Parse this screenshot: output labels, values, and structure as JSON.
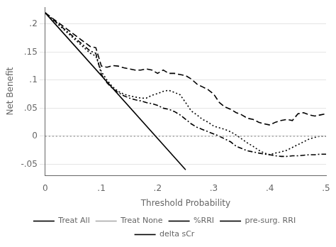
{
  "chart_data": {
    "type": "line",
    "xlabel": "Threshold Probability",
    "ylabel": "Net Benefit",
    "xlim": [
      0,
      0.5
    ],
    "ylim": [
      -0.07,
      0.23
    ],
    "xticks": [
      0,
      {
        "value": 0.1,
        "label": ".1"
      },
      {
        "value": 0.2,
        "label": ".2"
      },
      {
        "value": 0.3,
        "label": ".3"
      },
      {
        "value": 0.4,
        "label": ".4"
      },
      {
        "value": 0.5,
        "label": ".5"
      }
    ],
    "yticks": [
      {
        "value": -0.05,
        "label": "-.05"
      },
      0,
      {
        "value": 0.05,
        "label": ".05"
      },
      {
        "value": 0.1,
        "label": ".1"
      },
      {
        "value": 0.15,
        "label": ".15"
      },
      {
        "value": 0.2,
        "label": ".2"
      }
    ],
    "grid": "y",
    "legend": "bottom",
    "series": [
      {
        "name": "Treat All",
        "color": "#000000",
        "line_style": "solid",
        "x": [
          0.0,
          0.25
        ],
        "values": [
          0.22,
          -0.06
        ]
      },
      {
        "name": "Treat None",
        "color": "#aaaaaa",
        "line_style": "dotted",
        "x": [
          0.0,
          0.5
        ],
        "values": [
          0.0,
          0.0
        ]
      },
      {
        "name": "%RRI",
        "color": "#000000",
        "line_style": "dashed",
        "x": [
          0.0,
          0.08,
          0.09,
          0.1,
          0.11,
          0.12,
          0.13,
          0.14,
          0.15,
          0.16,
          0.17,
          0.18,
          0.19,
          0.2,
          0.21,
          0.22,
          0.23,
          0.24,
          0.25,
          0.26,
          0.27,
          0.28,
          0.29,
          0.3,
          0.31,
          0.32,
          0.33,
          0.34,
          0.35,
          0.36,
          0.37,
          0.38,
          0.39,
          0.4,
          0.41,
          0.42,
          0.43,
          0.44,
          0.45,
          0.46,
          0.47,
          0.48,
          0.49,
          0.5
        ],
        "values": [
          0.22,
          0.16,
          0.158,
          0.125,
          0.123,
          0.126,
          0.125,
          0.122,
          0.12,
          0.118,
          0.118,
          0.12,
          0.118,
          0.112,
          0.118,
          0.112,
          0.112,
          0.11,
          0.108,
          0.102,
          0.093,
          0.088,
          0.083,
          0.075,
          0.06,
          0.052,
          0.048,
          0.042,
          0.038,
          0.032,
          0.03,
          0.025,
          0.022,
          0.02,
          0.025,
          0.028,
          0.03,
          0.028,
          0.04,
          0.042,
          0.038,
          0.036,
          0.038,
          0.04
        ]
      },
      {
        "name": "pre-surg. RRI",
        "color": "#000000",
        "line_style": "dotted",
        "x": [
          0.0,
          0.08,
          0.09,
          0.1,
          0.11,
          0.12,
          0.13,
          0.14,
          0.15,
          0.16,
          0.17,
          0.18,
          0.19,
          0.2,
          0.21,
          0.22,
          0.23,
          0.24,
          0.25,
          0.26,
          0.27,
          0.28,
          0.29,
          0.3,
          0.31,
          0.32,
          0.33,
          0.34,
          0.35,
          0.36,
          0.37,
          0.38,
          0.39,
          0.4,
          0.41,
          0.42,
          0.43,
          0.44,
          0.45,
          0.46,
          0.47,
          0.48,
          0.49,
          0.5
        ],
        "values": [
          0.22,
          0.148,
          0.143,
          0.115,
          0.1,
          0.088,
          0.08,
          0.075,
          0.072,
          0.07,
          0.068,
          0.068,
          0.073,
          0.076,
          0.08,
          0.082,
          0.078,
          0.074,
          0.06,
          0.045,
          0.038,
          0.03,
          0.025,
          0.018,
          0.015,
          0.012,
          0.008,
          0.002,
          -0.005,
          -0.012,
          -0.018,
          -0.025,
          -0.03,
          -0.033,
          -0.03,
          -0.028,
          -0.025,
          -0.02,
          -0.015,
          -0.01,
          -0.005,
          -0.002,
          0.0,
          0.0
        ]
      },
      {
        "name": "delta sCr",
        "color": "#000000",
        "line_style": "dashdot",
        "x": [
          0.0,
          0.08,
          0.09,
          0.1,
          0.11,
          0.12,
          0.13,
          0.14,
          0.15,
          0.16,
          0.17,
          0.18,
          0.19,
          0.2,
          0.21,
          0.22,
          0.23,
          0.24,
          0.25,
          0.26,
          0.27,
          0.28,
          0.29,
          0.3,
          0.31,
          0.32,
          0.33,
          0.34,
          0.35,
          0.36,
          0.37,
          0.38,
          0.39,
          0.4,
          0.41,
          0.42,
          0.43,
          0.44,
          0.45,
          0.46,
          0.47,
          0.48,
          0.49,
          0.5
        ],
        "values": [
          0.22,
          0.152,
          0.148,
          0.11,
          0.095,
          0.085,
          0.078,
          0.072,
          0.068,
          0.065,
          0.063,
          0.06,
          0.058,
          0.055,
          0.05,
          0.048,
          0.044,
          0.038,
          0.03,
          0.022,
          0.016,
          0.012,
          0.008,
          0.004,
          0.0,
          -0.005,
          -0.01,
          -0.018,
          -0.022,
          -0.026,
          -0.028,
          -0.03,
          -0.032,
          -0.033,
          -0.035,
          -0.036,
          -0.036,
          -0.035,
          -0.035,
          -0.034,
          -0.033,
          -0.033,
          -0.032,
          -0.032
        ]
      }
    ]
  }
}
